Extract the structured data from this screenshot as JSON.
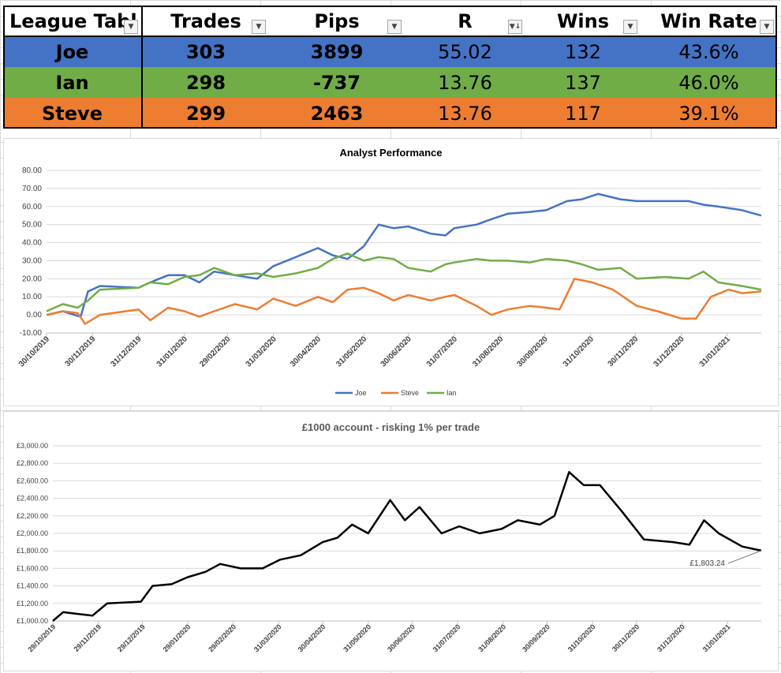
{
  "league_table": {
    "headers": [
      "League Tabl",
      "Trades",
      "Pips",
      "R",
      "Wins",
      "Win Rate"
    ],
    "rows": [
      {
        "name": "Joe",
        "trades": "303",
        "pips": "3899",
        "r": "55.02",
        "wins": "132",
        "win_rate": "43.6%",
        "color": "#4472c4"
      },
      {
        "name": "Ian",
        "trades": "298",
        "pips": "-737",
        "r": "13.76",
        "wins": "137",
        "win_rate": "46.0%",
        "color": "#70ad47"
      },
      {
        "name": "Steve",
        "trades": "299",
        "pips": "2463",
        "r": "13.76",
        "wins": "117",
        "win_rate": "39.1%",
        "color": "#ed7d31"
      }
    ],
    "filter_icons": [
      "dropdown-icon",
      "dropdown-icon",
      "dropdown-icon",
      "sort-desc-dropdown-icon",
      "dropdown-icon",
      "dropdown-icon"
    ]
  },
  "chart_data": [
    {
      "type": "line",
      "title": "Analyst Performance",
      "xlabel": "",
      "ylabel": "",
      "xlim": [
        "2019-10-30",
        "2021-02-23"
      ],
      "ylim": [
        -10,
        80
      ],
      "y_ticks": [
        "80.00",
        "70.00",
        "60.00",
        "50.00",
        "40.00",
        "30.00",
        "20.00",
        "10.00",
        "0.00",
        "-10.00"
      ],
      "x_ticks": [
        "30/10/2019",
        "30/11/2019",
        "31/12/2019",
        "31/01/2020",
        "29/02/2020",
        "31/03/2020",
        "30/04/2020",
        "31/05/2020",
        "30/06/2020",
        "31/07/2020",
        "31/08/2020",
        "30/09/2020",
        "31/10/2020",
        "30/11/2020",
        "31/12/2020",
        "31/01/2021"
      ],
      "x_tick_dates": [
        "2019-10-30",
        "2019-11-30",
        "2019-12-31",
        "2020-01-31",
        "2020-02-29",
        "2020-03-31",
        "2020-04-30",
        "2020-05-31",
        "2020-06-30",
        "2020-07-31",
        "2020-08-31",
        "2020-09-30",
        "2020-10-31",
        "2020-11-30",
        "2020-12-31",
        "2021-01-31"
      ],
      "grid": true,
      "legend": "bottom",
      "series": [
        {
          "name": "Joe",
          "color": "#4472c4",
          "x": [
            "2019-10-30",
            "2019-11-10",
            "2019-11-22",
            "2019-11-27",
            "2019-12-05",
            "2019-12-31",
            "2020-01-08",
            "2020-01-20",
            "2020-01-31",
            "2020-02-10",
            "2020-02-20",
            "2020-03-05",
            "2020-03-20",
            "2020-03-31",
            "2020-04-15",
            "2020-04-30",
            "2020-05-10",
            "2020-05-20",
            "2020-05-31",
            "2020-06-10",
            "2020-06-20",
            "2020-06-30",
            "2020-07-15",
            "2020-07-25",
            "2020-07-31",
            "2020-08-15",
            "2020-08-25",
            "2020-09-05",
            "2020-09-20",
            "2020-10-01",
            "2020-10-15",
            "2020-10-25",
            "2020-11-05",
            "2020-11-20",
            "2020-12-01",
            "2020-12-20",
            "2021-01-05",
            "2021-01-15",
            "2021-01-25",
            "2021-02-10",
            "2021-02-23"
          ],
          "y": [
            0,
            2,
            -1,
            13,
            16,
            15,
            18,
            22,
            22,
            18,
            24,
            22,
            20,
            27,
            32,
            37,
            33,
            31,
            38,
            50,
            48,
            49,
            45,
            44,
            48,
            50,
            53,
            56,
            57,
            58,
            63,
            64,
            67,
            64,
            63,
            63,
            63,
            61,
            60,
            58,
            55
          ]
        },
        {
          "name": "Steve",
          "color": "#ed7d31",
          "x": [
            "2019-10-30",
            "2019-11-10",
            "2019-11-20",
            "2019-11-25",
            "2019-12-05",
            "2019-12-31",
            "2020-01-08",
            "2020-01-20",
            "2020-01-31",
            "2020-02-10",
            "2020-02-20",
            "2020-03-05",
            "2020-03-20",
            "2020-03-31",
            "2020-04-15",
            "2020-04-30",
            "2020-05-10",
            "2020-05-20",
            "2020-05-31",
            "2020-06-10",
            "2020-06-20",
            "2020-06-30",
            "2020-07-15",
            "2020-07-25",
            "2020-07-31",
            "2020-08-15",
            "2020-08-25",
            "2020-09-05",
            "2020-09-20",
            "2020-10-01",
            "2020-10-10",
            "2020-10-20",
            "2020-11-01",
            "2020-11-15",
            "2020-12-01",
            "2020-12-15",
            "2020-12-31",
            "2021-01-10",
            "2021-01-20",
            "2021-02-01",
            "2021-02-10",
            "2021-02-23"
          ],
          "y": [
            0,
            2,
            1,
            -5,
            0,
            3,
            -3,
            4,
            2,
            -1,
            2,
            6,
            3,
            9,
            5,
            10,
            7,
            14,
            15,
            12,
            8,
            11,
            8,
            10,
            11,
            5,
            0,
            3,
            5,
            4,
            3,
            20,
            18,
            14,
            5,
            2,
            -2,
            -2,
            10,
            14,
            12,
            13
          ]
        },
        {
          "name": "Ian",
          "color": "#70ad47",
          "x": [
            "2019-10-30",
            "2019-11-10",
            "2019-11-20",
            "2019-11-27",
            "2019-12-05",
            "2019-12-31",
            "2020-01-08",
            "2020-01-20",
            "2020-01-31",
            "2020-02-10",
            "2020-02-20",
            "2020-03-05",
            "2020-03-20",
            "2020-03-31",
            "2020-04-15",
            "2020-04-30",
            "2020-05-10",
            "2020-05-20",
            "2020-05-31",
            "2020-06-10",
            "2020-06-20",
            "2020-06-30",
            "2020-07-15",
            "2020-07-25",
            "2020-07-31",
            "2020-08-15",
            "2020-08-25",
            "2020-09-05",
            "2020-09-20",
            "2020-10-01",
            "2020-10-15",
            "2020-10-25",
            "2020-11-05",
            "2020-11-20",
            "2020-12-01",
            "2020-12-20",
            "2021-01-05",
            "2021-01-15",
            "2021-01-25",
            "2021-02-10",
            "2021-02-23"
          ],
          "y": [
            2,
            6,
            4,
            8,
            14,
            15,
            18,
            17,
            21,
            22,
            26,
            22,
            23,
            21,
            23,
            26,
            31,
            34,
            30,
            32,
            31,
            26,
            24,
            28,
            29,
            31,
            30,
            30,
            29,
            31,
            30,
            28,
            25,
            26,
            20,
            21,
            20,
            24,
            18,
            16,
            14
          ]
        }
      ]
    },
    {
      "type": "line",
      "title": "£1000 account - risking 1% per trade",
      "xlabel": "",
      "ylabel": "",
      "xlim": [
        "2019-10-29",
        "2021-02-23"
      ],
      "ylim": [
        1000,
        3000
      ],
      "y_ticks": [
        "£3,000.00",
        "£2,800.00",
        "£2,600.00",
        "£2,400.00",
        "£2,200.00",
        "£2,000.00",
        "£1,800.00",
        "£1,600.00",
        "£1,400.00",
        "£1,200.00",
        "£1,000.00"
      ],
      "x_ticks": [
        "29/10/2019",
        "29/11/2019",
        "29/12/2019",
        "29/01/2020",
        "29/02/2020",
        "31/03/2020",
        "30/04/2020",
        "31/05/2020",
        "30/06/2020",
        "31/07/2020",
        "31/08/2020",
        "30/09/2020",
        "31/10/2020",
        "30/11/2020",
        "31/12/2020",
        "31/01/2021"
      ],
      "x_tick_dates": [
        "2019-10-29",
        "2019-11-29",
        "2019-12-29",
        "2020-01-29",
        "2020-02-29",
        "2020-03-31",
        "2020-04-30",
        "2020-05-31",
        "2020-06-30",
        "2020-07-31",
        "2020-08-31",
        "2020-09-30",
        "2020-10-31",
        "2020-11-30",
        "2020-12-31",
        "2021-01-31"
      ],
      "grid": true,
      "legend": "none",
      "annotation": "£1,803.24",
      "series": [
        {
          "name": "",
          "color": "#000000",
          "x": [
            "2019-10-29",
            "2019-11-05",
            "2019-11-15",
            "2019-11-25",
            "2019-12-05",
            "2019-12-28",
            "2020-01-05",
            "2020-01-18",
            "2020-01-29",
            "2020-02-10",
            "2020-02-20",
            "2020-03-05",
            "2020-03-20",
            "2020-04-01",
            "2020-04-15",
            "2020-04-30",
            "2020-05-10",
            "2020-05-20",
            "2020-05-31",
            "2020-06-15",
            "2020-06-25",
            "2020-07-05",
            "2020-07-20",
            "2020-08-01",
            "2020-08-15",
            "2020-08-30",
            "2020-09-10",
            "2020-09-25",
            "2020-10-05",
            "2020-10-15",
            "2020-10-25",
            "2020-11-05",
            "2020-11-20",
            "2020-12-05",
            "2020-12-25",
            "2021-01-05",
            "2021-01-15",
            "2021-01-25",
            "2021-02-10",
            "2021-02-23"
          ],
          "y": [
            1000,
            1100,
            1080,
            1060,
            1200,
            1220,
            1400,
            1420,
            1500,
            1560,
            1650,
            1600,
            1600,
            1700,
            1750,
            1900,
            1950,
            2100,
            2000,
            2380,
            2150,
            2300,
            2000,
            2080,
            2000,
            2050,
            2150,
            2100,
            2200,
            2700,
            2550,
            2550,
            2250,
            1930,
            1900,
            1870,
            2150,
            2000,
            1850,
            1803
          ]
        }
      ]
    }
  ]
}
